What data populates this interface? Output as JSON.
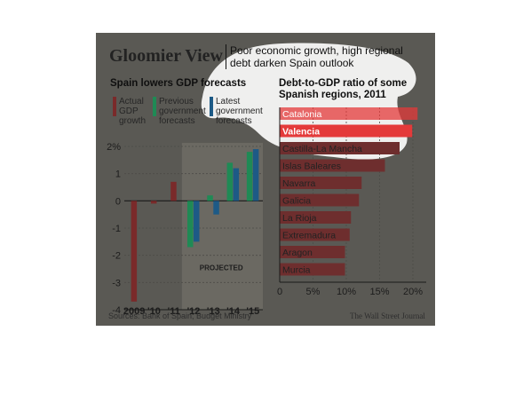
{
  "header": {
    "title": "Gloomier View",
    "subtitle": "Poor economic growth, high regional debt darken Spain outlook"
  },
  "footer": {
    "source": "Sources: Bank of Spain; Budget Ministry",
    "credit": "The Wall Street Journal"
  },
  "colors": {
    "panel": "#5a5954",
    "actual": "#7a2a2a",
    "previous": "#1f8a55",
    "latest": "#1d5a86",
    "bar_right": "#6e2e2e",
    "highlight": "#e43a3a"
  },
  "chart_data": [
    {
      "type": "bar",
      "title": "Spain lowers GDP forecasts",
      "categories": [
        "2009",
        "'10",
        "'11",
        "'12",
        "'13",
        "'14",
        "'15"
      ],
      "series": [
        {
          "name": "Actual GDP growth",
          "values": [
            -3.7,
            -0.1,
            0.7,
            null,
            null,
            null,
            null
          ]
        },
        {
          "name": "Previous government forecasts",
          "values": [
            null,
            null,
            null,
            -1.7,
            0.2,
            1.4,
            1.8
          ]
        },
        {
          "name": "Latest government forecasts",
          "values": [
            null,
            null,
            null,
            -1.5,
            -0.5,
            1.2,
            1.9
          ]
        }
      ],
      "legend": [
        "Actual GDP growth",
        "Previous government forecasts",
        "Latest government forecasts"
      ],
      "ylim": [
        -4,
        2
      ],
      "yticks": [
        "2%",
        "1",
        "0",
        "-1",
        "-2",
        "-3",
        "-4"
      ],
      "annotation": "PROJECTED",
      "projected_from": "'12"
    },
    {
      "type": "bar",
      "title": "Debt-to-GDP ratio of some Spanish regions, 2011",
      "orientation": "horizontal",
      "categories": [
        "Catalonia",
        "Valencia",
        "Castilla-La Mancha",
        "Islas Baleares",
        "Navarra",
        "Galicia",
        "La Rioja",
        "Extremadura",
        "Aragon",
        "Murcia"
      ],
      "values": [
        20.7,
        19.9,
        18.0,
        15.8,
        12.3,
        11.9,
        10.7,
        10.5,
        9.8,
        9.8
      ],
      "xlim": [
        0,
        22
      ],
      "xticks": [
        "0",
        "5%",
        "10%",
        "15%",
        "20%"
      ],
      "highlighted": [
        "Catalonia",
        "Valencia"
      ]
    }
  ]
}
